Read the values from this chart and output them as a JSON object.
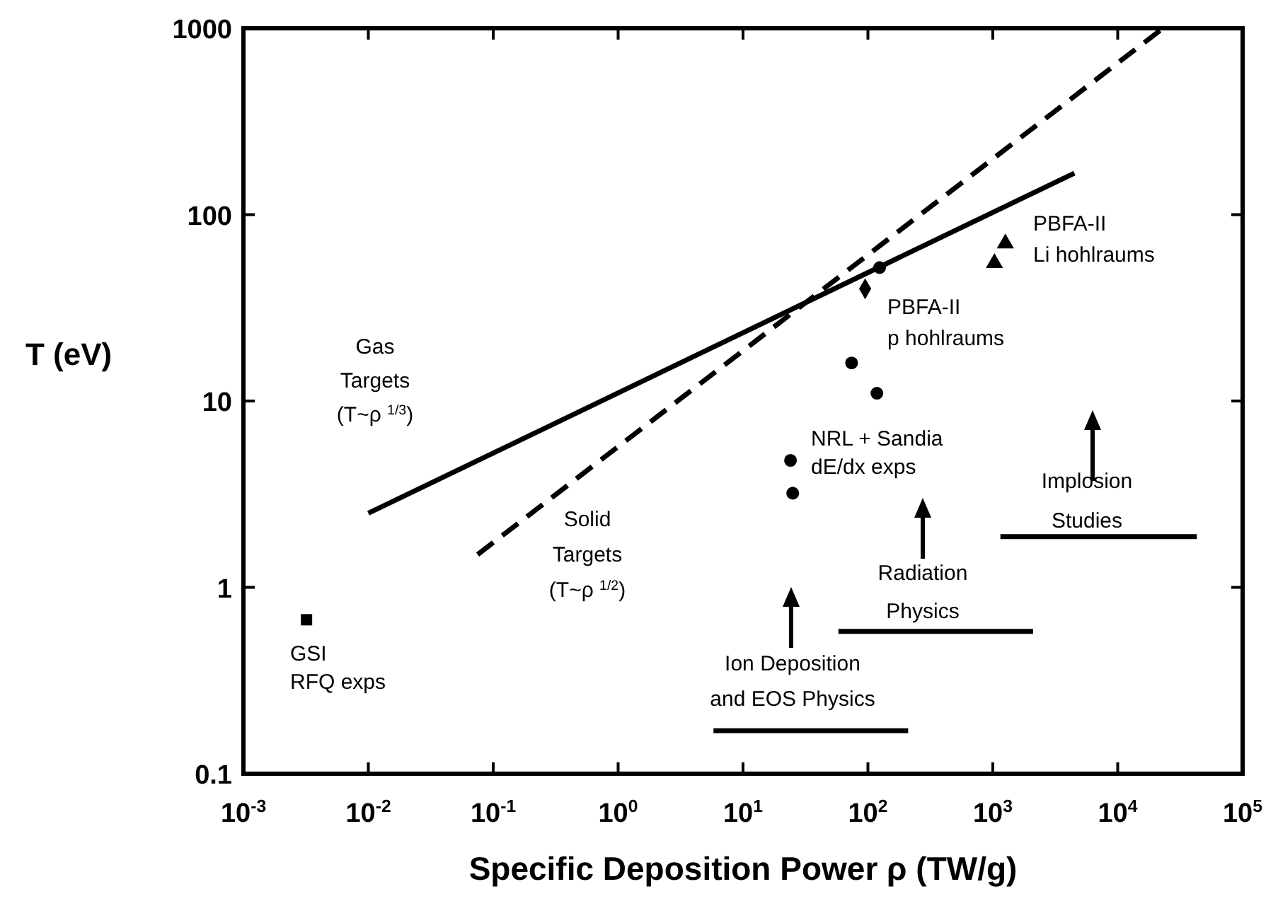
{
  "chart_data": {
    "type": "scatter",
    "xlabel": "Specific Deposition Power ρ (TW/g)",
    "ylabel": "T (eV)",
    "log": "xy",
    "xlim": [
      0.001,
      100000
    ],
    "ylim": [
      0.1,
      1000
    ],
    "xticks": [
      {
        "value": 0.001,
        "label": "10$^{-3}$"
      },
      {
        "value": 0.01,
        "label": "10$^{-2}$"
      },
      {
        "value": 0.1,
        "label": "10$^{-1}$"
      },
      {
        "value": 1,
        "label": "10$^{0}$"
      },
      {
        "value": 10,
        "label": "10$^{1}$"
      },
      {
        "value": 100,
        "label": "10$^{2}$"
      },
      {
        "value": 1000,
        "label": "10$^{3}$"
      },
      {
        "value": 10000,
        "label": "10$^{4}$"
      },
      {
        "value": 100000,
        "label": "10$^{5}$"
      }
    ],
    "yticks": [
      0.1,
      1,
      10,
      100,
      1000
    ],
    "series": [
      {
        "type": "line",
        "color": "#000000",
        "marker": "none",
        "line_style": "solid",
        "x": [
          0.01,
          4500
        ],
        "values": [
          2.5,
          167
        ]
      },
      {
        "type": "line",
        "color": "#000000",
        "marker": "none",
        "line_style": "dashed",
        "x": [
          0.075,
          23000
        ],
        "values": [
          1.5,
          1000
        ]
      },
      {
        "type": "line",
        "color": "#000000",
        "marker": "none",
        "line_style": "solid",
        "x": [
          1150,
          43000
        ],
        "values": [
          1.87,
          1.87
        ]
      },
      {
        "type": "line",
        "color": "#000000",
        "marker": "none",
        "line_style": "solid",
        "x": [
          58,
          2100
        ],
        "values": [
          0.58,
          0.58
        ]
      },
      {
        "type": "line",
        "color": "#000000",
        "marker": "none",
        "line_style": "solid",
        "x": [
          5.8,
          210
        ],
        "values": [
          0.17,
          0.17
        ]
      },
      {
        "color": "#000000",
        "marker": "square",
        "x": [
          0.0032
        ],
        "values": [
          0.67
        ]
      },
      {
        "color": "#000000",
        "marker": "circle",
        "x": [
          124,
          74,
          118,
          24,
          25
        ],
        "values": [
          52,
          16,
          11,
          4.8,
          3.2
        ]
      },
      {
        "color": "#000000",
        "marker": "diamond",
        "x": [
          95
        ],
        "values": [
          40
        ]
      },
      {
        "color": "#000000",
        "marker": "triangle",
        "x": [
          1260,
          1030
        ],
        "values": [
          70,
          55
        ]
      }
    ],
    "annotations": [
      "Gas\nTargets\n(T~ρ $^{1/3}$)",
      "Solid\nTargets\n(T~ρ $^{1/2}$)",
      "GSI\nRFQ exps",
      "PBFA-II\nLi hohlraums",
      "PBFA-II\np hohlraums",
      "NRL + Sandia\ndE/dx exps",
      "Implosion\nStudies",
      "Radiation\nPhysics",
      "Ion Deposition\nand EOS Physics"
    ]
  }
}
